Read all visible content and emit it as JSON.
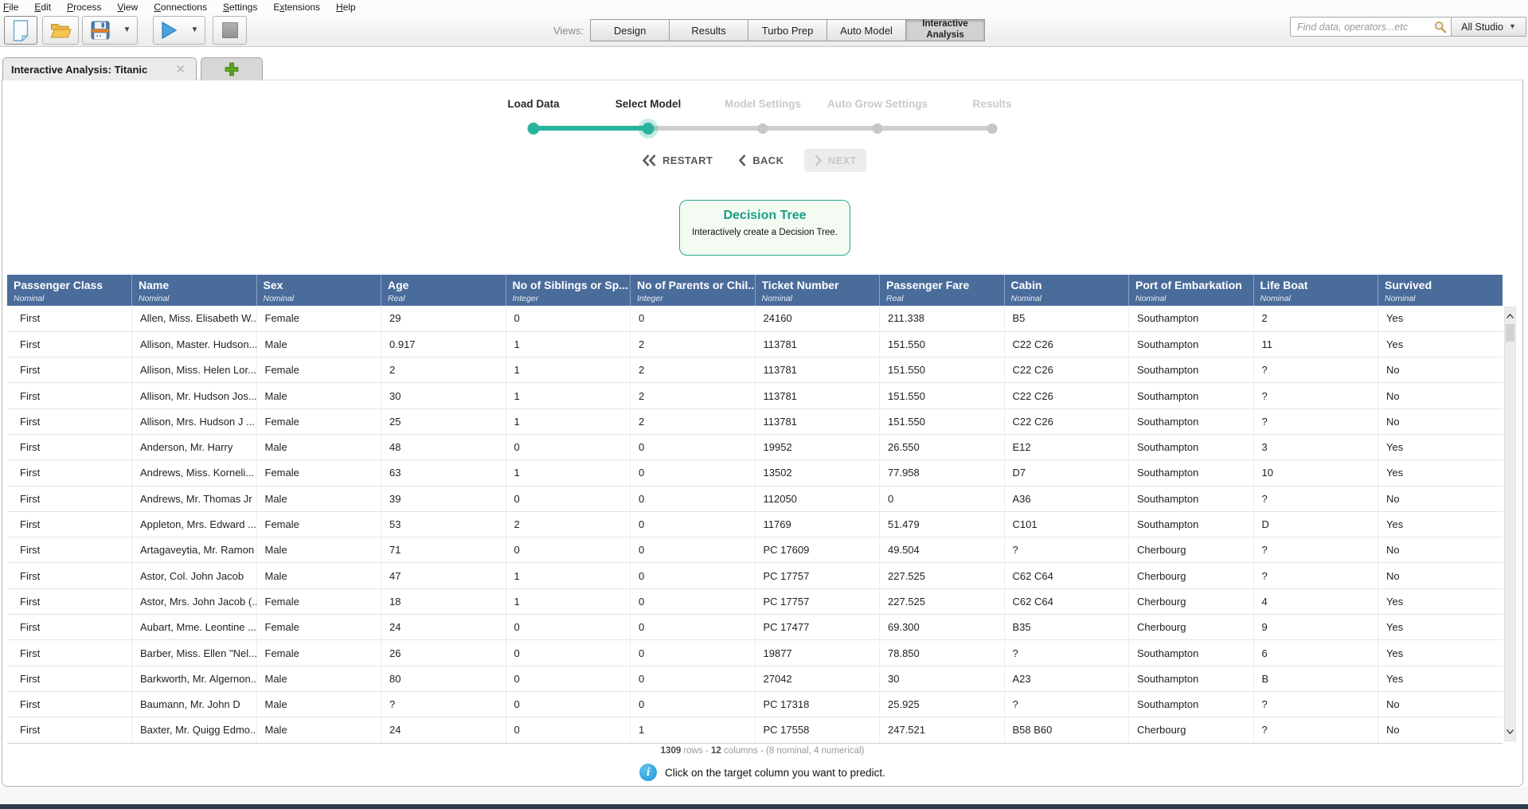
{
  "menu": {
    "items": [
      {
        "label": "File",
        "mnemonic": 0
      },
      {
        "label": "Edit",
        "mnemonic": 0
      },
      {
        "label": "Process",
        "mnemonic": 0
      },
      {
        "label": "View",
        "mnemonic": 0
      },
      {
        "label": "Connections",
        "mnemonic": 0
      },
      {
        "label": "Settings",
        "mnemonic": 0
      },
      {
        "label": "Extensions",
        "mnemonic": 1
      },
      {
        "label": "Help",
        "mnemonic": 0
      }
    ]
  },
  "toolbar": {
    "buttons": [
      "new-process",
      "open-process",
      "save-process",
      "save-dropdown",
      "run-process",
      "run-dropdown",
      "stop-process"
    ]
  },
  "views": {
    "label": "Views:",
    "buttons": [
      "Design",
      "Results",
      "Turbo Prep",
      "Auto Model",
      "Interactive Analysis"
    ],
    "active": "Interactive Analysis"
  },
  "search": {
    "placeholder": "Find data, operators...etc",
    "scope": "All Studio"
  },
  "tabs": {
    "title": "Interactive Analysis: Titanic"
  },
  "stepper": {
    "steps": [
      {
        "label": "Load Data",
        "state": "done"
      },
      {
        "label": "Select Model",
        "state": "current"
      },
      {
        "label": "Model Settings",
        "state": "todo"
      },
      {
        "label": "Auto Grow Settings",
        "state": "todo"
      },
      {
        "label": "Results",
        "state": "todo"
      }
    ]
  },
  "nav": {
    "restart": "RESTART",
    "back": "BACK",
    "next": "NEXT"
  },
  "model_card": {
    "title": "Decision Tree",
    "subtitle": "Interactively create a Decision Tree."
  },
  "table": {
    "columns": [
      {
        "name": "Passenger Class",
        "type": "Nominal"
      },
      {
        "name": "Name",
        "type": "Nominal"
      },
      {
        "name": "Sex",
        "type": "Nominal"
      },
      {
        "name": "Age",
        "type": "Real"
      },
      {
        "name": "No of Siblings or Sp...",
        "type": "Integer"
      },
      {
        "name": "No of Parents or Chil...",
        "type": "Integer"
      },
      {
        "name": "Ticket Number",
        "type": "Nominal"
      },
      {
        "name": "Passenger Fare",
        "type": "Real"
      },
      {
        "name": "Cabin",
        "type": "Nominal"
      },
      {
        "name": "Port of Embarkation",
        "type": "Nominal"
      },
      {
        "name": "Life Boat",
        "type": "Nominal"
      },
      {
        "name": "Survived",
        "type": "Nominal"
      }
    ],
    "rows": [
      [
        "First",
        "Allen, Miss. Elisabeth W...",
        "Female",
        "29",
        "0",
        "0",
        "24160",
        "211.338",
        "B5",
        "Southampton",
        "2",
        "Yes"
      ],
      [
        "First",
        "Allison, Master. Hudson...",
        "Male",
        "0.917",
        "1",
        "2",
        "113781",
        "151.550",
        "C22 C26",
        "Southampton",
        "11",
        "Yes"
      ],
      [
        "First",
        "Allison, Miss. Helen Lor...",
        "Female",
        "2",
        "1",
        "2",
        "113781",
        "151.550",
        "C22 C26",
        "Southampton",
        "?",
        "No"
      ],
      [
        "First",
        "Allison, Mr. Hudson Jos...",
        "Male",
        "30",
        "1",
        "2",
        "113781",
        "151.550",
        "C22 C26",
        "Southampton",
        "?",
        "No"
      ],
      [
        "First",
        "Allison, Mrs. Hudson J ...",
        "Female",
        "25",
        "1",
        "2",
        "113781",
        "151.550",
        "C22 C26",
        "Southampton",
        "?",
        "No"
      ],
      [
        "First",
        "Anderson, Mr. Harry",
        "Male",
        "48",
        "0",
        "0",
        "19952",
        "26.550",
        "E12",
        "Southampton",
        "3",
        "Yes"
      ],
      [
        "First",
        "Andrews, Miss. Korneli...",
        "Female",
        "63",
        "1",
        "0",
        "13502",
        "77.958",
        "D7",
        "Southampton",
        "10",
        "Yes"
      ],
      [
        "First",
        "Andrews, Mr. Thomas Jr",
        "Male",
        "39",
        "0",
        "0",
        "112050",
        "0",
        "A36",
        "Southampton",
        "?",
        "No"
      ],
      [
        "First",
        "Appleton, Mrs. Edward ...",
        "Female",
        "53",
        "2",
        "0",
        "11769",
        "51.479",
        "C101",
        "Southampton",
        "D",
        "Yes"
      ],
      [
        "First",
        "Artagaveytia, Mr. Ramon",
        "Male",
        "71",
        "0",
        "0",
        "PC 17609",
        "49.504",
        "?",
        "Cherbourg",
        "?",
        "No"
      ],
      [
        "First",
        "Astor, Col. John Jacob",
        "Male",
        "47",
        "1",
        "0",
        "PC 17757",
        "227.525",
        "C62 C64",
        "Cherbourg",
        "?",
        "No"
      ],
      [
        "First",
        "Astor, Mrs. John Jacob (...",
        "Female",
        "18",
        "1",
        "0",
        "PC 17757",
        "227.525",
        "C62 C64",
        "Cherbourg",
        "4",
        "Yes"
      ],
      [
        "First",
        "Aubart, Mme. Leontine ...",
        "Female",
        "24",
        "0",
        "0",
        "PC 17477",
        "69.300",
        "B35",
        "Cherbourg",
        "9",
        "Yes"
      ],
      [
        "First",
        "Barber, Miss. Ellen \"Nel...",
        "Female",
        "26",
        "0",
        "0",
        "19877",
        "78.850",
        "?",
        "Southampton",
        "6",
        "Yes"
      ],
      [
        "First",
        "Barkworth, Mr. Algernon...",
        "Male",
        "80",
        "0",
        "0",
        "27042",
        "30",
        "A23",
        "Southampton",
        "B",
        "Yes"
      ],
      [
        "First",
        "Baumann, Mr. John D",
        "Male",
        "?",
        "0",
        "0",
        "PC 17318",
        "25.925",
        "?",
        "Southampton",
        "?",
        "No"
      ],
      [
        "First",
        "Baxter, Mr. Quigg Edmo...",
        "Male",
        "24",
        "0",
        "1",
        "PC 17558",
        "247.521",
        "B58 B60",
        "Cherbourg",
        "?",
        "No"
      ]
    ]
  },
  "footer": {
    "rows_count": "1309",
    "rows_word": " rows - ",
    "cols_count": "12",
    "cols_rest": " columns - (8 nominal, 4 numerical)",
    "hint": "Click on the target column you want to predict."
  },
  "colors": {
    "accent_teal": "#2ab49c",
    "header_blue": "#4a6c9b",
    "info_blue": "#2fa6e0",
    "plus_green": "#5aa321",
    "bottom_bar": "#2d3a4d"
  }
}
